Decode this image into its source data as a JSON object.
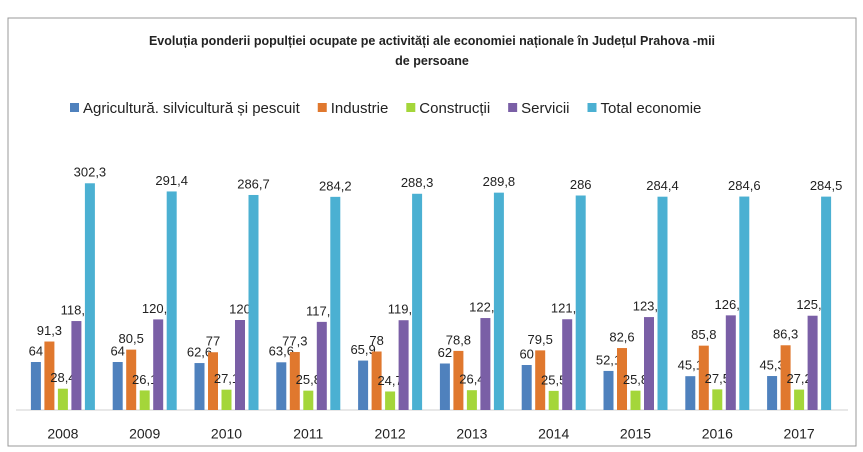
{
  "chart_data": {
    "type": "bar",
    "title": "Evoluția ponderii populției ocupate pe activități ale economiei naționale în Județul Prahova -mii de persoane",
    "categories": [
      "2008",
      "2009",
      "2010",
      "2011",
      "2012",
      "2013",
      "2014",
      "2015",
      "2016",
      "2017"
    ],
    "series": [
      {
        "name": "Agricultură. silvicultură și pescuit",
        "color": "#4f81bd",
        "values": [
          64,
          64,
          62.6,
          63.6,
          65.9,
          62,
          60,
          52.1,
          45.1,
          45.3
        ],
        "value_labels": [
          "64",
          "64",
          "62,6",
          "63,6",
          "65,9",
          "62",
          "60",
          "52,1",
          "45,1",
          "45,3"
        ]
      },
      {
        "name": "Industrie",
        "color": "#e0782e",
        "values": [
          91.3,
          80.5,
          77,
          77.3,
          78,
          78.8,
          79.5,
          82.6,
          85.8,
          86.3
        ],
        "value_labels": [
          "91,3",
          "80,5",
          "77",
          "77,3",
          "78",
          "78,8",
          "79,5",
          "82,6",
          "85,8",
          "86,3"
        ]
      },
      {
        "name": "Construcții",
        "color": "#a4d63a",
        "values": [
          28.4,
          26.1,
          27.1,
          25.8,
          24.7,
          26.4,
          25.5,
          25.8,
          27.5,
          27.2
        ],
        "value_labels": [
          "28,4",
          "26,1",
          "27,1",
          "25,8",
          "24,7",
          "26,4",
          "25,5",
          "25,8",
          "27,5",
          "27,2"
        ]
      },
      {
        "name": "Servicii",
        "color": "#7a5fa6",
        "values": [
          118.6,
          120.8,
          120,
          117.5,
          119.7,
          122.6,
          121.0,
          123.9,
          126.2,
          125.7
        ],
        "value_labels": [
          "118,6",
          "120,8",
          "120",
          "117,5",
          "119,7",
          "122,6",
          "121,0",
          "123,9",
          "126,2",
          "125,7"
        ]
      },
      {
        "name": "Total economie",
        "color": "#4bb0d2",
        "values": [
          302.3,
          291.4,
          286.7,
          284.2,
          288.3,
          289.8,
          286,
          284.4,
          284.6,
          284.5
        ],
        "value_labels": [
          "302,3",
          "291,4",
          "286,7",
          "284,2",
          "288,3",
          "289,8",
          "286",
          "284,4",
          "284,6",
          "284,5"
        ]
      }
    ],
    "ylim": [
      0,
      330
    ]
  }
}
